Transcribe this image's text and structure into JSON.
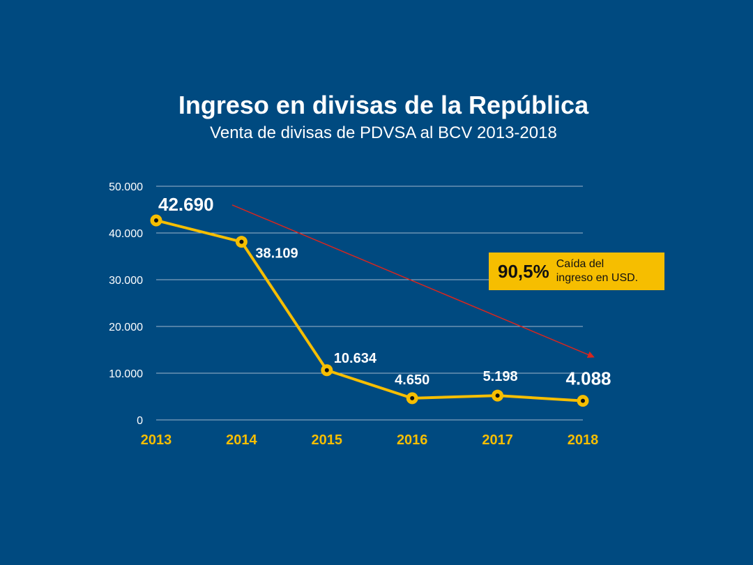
{
  "header": {
    "title": "Ingreso en divisas de la República",
    "subtitle": "Venta de divisas de PDVSA al BCV 2013-2018"
  },
  "callout": {
    "percent": "90,5%",
    "line1": "Caída del",
    "line2": "ingreso en USD."
  },
  "colors": {
    "background": "#004a80",
    "line": "#f6be00",
    "trend": "#d7261e",
    "grid": "#9fb7cc",
    "year_labels": "#f6be00",
    "text": "#ffffff"
  },
  "chart_data": {
    "type": "line",
    "title": "Ingreso en divisas de la República",
    "subtitle": "Venta de divisas de PDVSA al BCV 2013-2018",
    "categories": [
      "2013",
      "2014",
      "2015",
      "2016",
      "2017",
      "2018"
    ],
    "values": [
      42690,
      38109,
      10634,
      4650,
      5198,
      4088
    ],
    "data_labels": [
      "42.690",
      "38.109",
      "10.634",
      "4.650",
      "5.198",
      "4.088"
    ],
    "y_ticks": [
      0,
      10000,
      20000,
      30000,
      40000,
      50000
    ],
    "y_tick_labels": [
      "0",
      "10.000",
      "20.000",
      "30.000",
      "40.000",
      "50.000"
    ],
    "ylim": [
      0,
      50000
    ],
    "grid": true,
    "trend_arrow": {
      "from_value": 46000,
      "to_value": 13500
    }
  }
}
